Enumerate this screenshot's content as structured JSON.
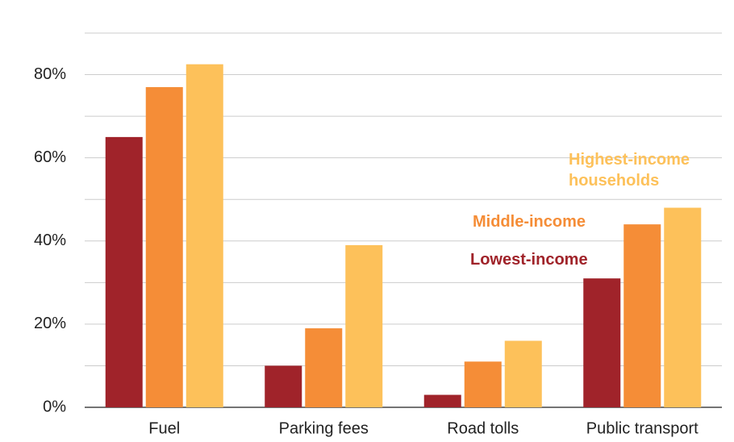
{
  "chart_data": {
    "type": "bar",
    "categories": [
      "Fuel",
      "Parking fees",
      "Road tolls",
      "Public transport"
    ],
    "series": [
      {
        "name": "Lowest-income",
        "color": "#a0232a",
        "values": [
          65,
          10,
          3,
          31
        ]
      },
      {
        "name": "Middle-income",
        "color": "#f58d37",
        "values": [
          77,
          19,
          11,
          44
        ]
      },
      {
        "name": "Highest-income households",
        "color": "#fdc15a",
        "values": [
          82.5,
          39,
          16,
          48
        ]
      }
    ],
    "ylim": [
      0,
      90
    ],
    "yticks": [
      {
        "value": 0,
        "label": "0%"
      },
      {
        "value": 20,
        "label": "20%"
      },
      {
        "value": 40,
        "label": "40%"
      },
      {
        "value": 60,
        "label": "60%"
      },
      {
        "value": 80,
        "label": "80%"
      }
    ],
    "ygridlines": [
      10,
      20,
      30,
      40,
      50,
      60,
      70,
      80,
      90
    ],
    "grid": true
  }
}
